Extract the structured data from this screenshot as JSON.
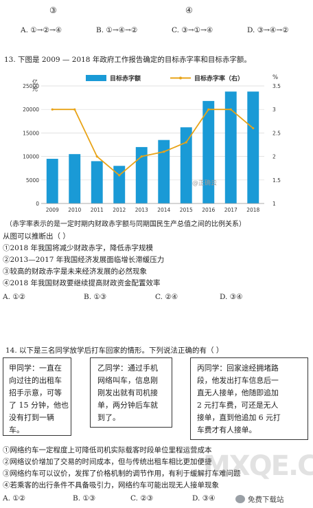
{
  "top": {
    "circ_left": "③",
    "circ_right": "④",
    "options": [
      "A. ①→②→④",
      "B. ①→④→②",
      "C. ③→①→④",
      "D. ③→④→②"
    ]
  },
  "q13": {
    "stem": "13. 下图是 2009 — 2018 年政府工作报告确定的目标赤字率和目标赤字额。",
    "note": "（赤字率表示的是一定时期内财政赤字额与同期国民生产总值之间的比例关系）",
    "lead": "从图可以推断出（    ）",
    "items": [
      "①2018 年我国将减少财政赤字，降低赤字规模",
      "②2013—2017 年我国经济发展面临增长滞缓压力",
      "③较高的财政赤字是未来经济发展的必然现象",
      "④2018 年我国财政要继续提高财政资金配置效率"
    ],
    "options": [
      "A. ①②",
      "B. ①③",
      "C. ②④",
      "D. ③④"
    ]
  },
  "chart_data": {
    "type": "bar",
    "categories": [
      "2009",
      "2010",
      "2011",
      "2012",
      "2013",
      "2014",
      "2015",
      "2016",
      "2017",
      "2018"
    ],
    "series": [
      {
        "name": "目标赤字额",
        "type": "bar",
        "axis": "left",
        "color": "#1a9ad6",
        "values": [
          9500,
          10500,
          9000,
          8000,
          12000,
          13500,
          16200,
          21800,
          23800,
          23800
        ]
      },
      {
        "name": "目标赤字率（右）",
        "type": "line",
        "axis": "right",
        "color": "#e8a317",
        "values": [
          3.0,
          3.0,
          2.0,
          1.6,
          2.0,
          2.1,
          2.3,
          3.0,
          3.0,
          2.6
        ]
      }
    ],
    "ylabel_left": "亿元",
    "ylabel_right": "%",
    "ylim_left": [
      0,
      25000
    ],
    "ylim_right": [
      1,
      3.5
    ],
    "yticks_left": [
      "0",
      "5000",
      "10000",
      "15000",
      "20000",
      "25000"
    ],
    "yticks_right": [
      "1",
      "1.5",
      "2",
      "2.5",
      "3",
      "3.5"
    ],
    "grid": true,
    "legend": "top",
    "watermark": "@正确云"
  },
  "q14": {
    "stem": "14. 以下是三名同学放学后打车回家的情形。下列说法正确的有（    ）",
    "boxes": [
      [
        "甲同学：一直在",
        "向过往的出租车",
        "招手示意，可等",
        "了 15 分钟，他也",
        "没有打到一辆",
        "车。"
      ],
      [
        "乙同学：通过手机",
        "网络叫车，信息刚",
        "刚发出就有司机接",
        "单，两分钟后车就",
        "到了。"
      ],
      [
        "丙同学：回家途经拥堵路",
        "段，他发出打车信息后一",
        "直无人接单，他随即追加",
        "2 元打车费，可还是无人",
        "接单，直到他追加 6 元打",
        "车费才有人接单。"
      ]
    ],
    "items": [
      "①网络约车一定程度上可降低司机实际载客时段单位里程运营成本",
      "②网络议价增加了交易的时间成本，但与传统出租车相比更加便捷",
      "③网络约车可以议价，发挥了价格机制的调节作用，有利于缓解打车难问题",
      "④若乘客的出行条件不具备吸引力，网络约车可能出现无人接单现象"
    ],
    "options": [
      "A. ①②",
      "B. ①③",
      "C. ②③",
      "D. ③④"
    ]
  },
  "footer": {
    "brand": "免费下载站",
    "site_watermark": "MXQE.COM"
  }
}
